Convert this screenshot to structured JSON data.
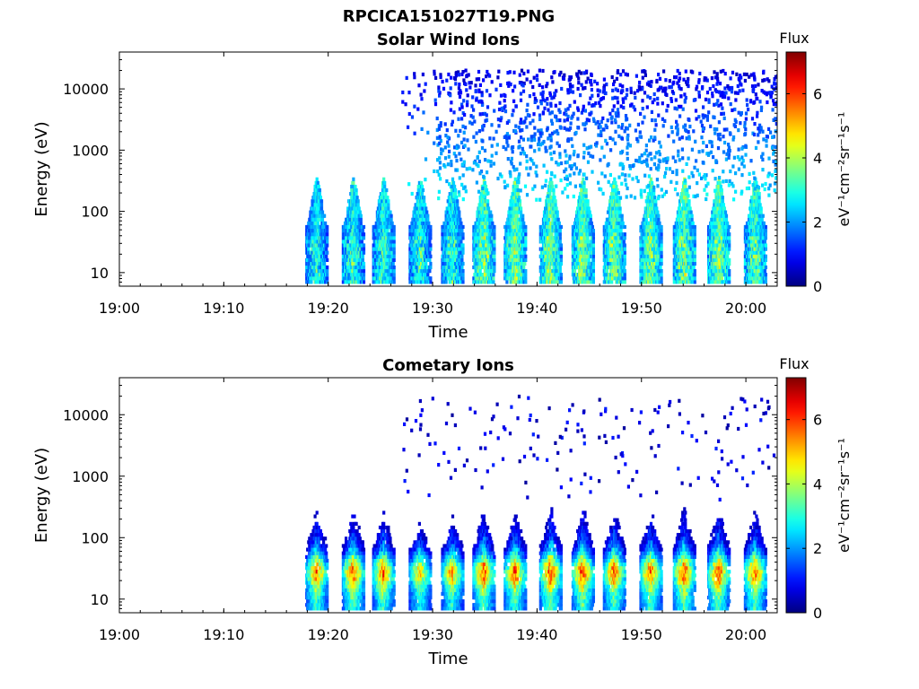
{
  "figure_title": "RPCICA151027T19.PNG",
  "chart_data": [
    {
      "type": "heatmap",
      "title": "Solar Wind Ions",
      "xlabel": "Time",
      "ylabel": "Energy (eV)",
      "xlim": [
        "19:00",
        "20:03"
      ],
      "x_ticks": [
        "19:00",
        "19:10",
        "19:20",
        "19:30",
        "19:40",
        "19:50",
        "20:00"
      ],
      "y_scale": "log",
      "ylim": [
        6,
        40000
      ],
      "y_ticks": [
        "10",
        "100",
        "1000",
        "10000"
      ],
      "colorbar": {
        "title": "Flux",
        "label": "eV⁻¹cm⁻²sr⁻¹s⁻¹",
        "range": [
          0,
          7.3
        ],
        "ticks": [
          "0",
          "2",
          "4",
          "6"
        ],
        "colormap": "jet"
      },
      "data_start": "19:17",
      "bursts": [
        {
          "t": "19:18.8",
          "peak": 2.5
        },
        {
          "t": "19:22.3",
          "peak": 2.7
        },
        {
          "t": "19:25.2",
          "peak": 2.7
        },
        {
          "t": "19:28.7",
          "peak": 2.6
        },
        {
          "t": "19:31.8",
          "peak": 2.6
        },
        {
          "t": "19:34.8",
          "peak": 3.2
        },
        {
          "t": "19:37.8",
          "peak": 3.2
        },
        {
          "t": "19:41.2",
          "peak": 3.2
        },
        {
          "t": "19:44.3",
          "peak": 3.2
        },
        {
          "t": "19:47.3",
          "peak": 3.2
        },
        {
          "t": "19:50.8",
          "peak": 3.2
        },
        {
          "t": "19:54.0",
          "peak": 3.2
        },
        {
          "t": "19:57.3",
          "peak": 3.2
        },
        {
          "t": "20:00.8",
          "peak": 3.0
        }
      ]
    },
    {
      "type": "heatmap",
      "title": "Cometary Ions",
      "xlabel": "Time",
      "ylabel": "Energy (eV)",
      "xlim": [
        "19:00",
        "20:03"
      ],
      "x_ticks": [
        "19:00",
        "19:10",
        "19:20",
        "19:30",
        "19:40",
        "19:50",
        "20:00"
      ],
      "y_scale": "log",
      "ylim": [
        6,
        40000
      ],
      "y_ticks": [
        "10",
        "100",
        "1000",
        "10000"
      ],
      "colorbar": {
        "title": "Flux",
        "label": "eV⁻¹cm⁻²sr⁻¹s⁻¹",
        "range": [
          0,
          7.3
        ],
        "ticks": [
          "0",
          "2",
          "4",
          "6"
        ],
        "colormap": "jet"
      },
      "data_start": "19:17",
      "bursts": [
        {
          "t": "19:18.8",
          "peak": 6.2
        },
        {
          "t": "19:22.3",
          "peak": 6.5
        },
        {
          "t": "19:25.2",
          "peak": 6.2
        },
        {
          "t": "19:28.7",
          "peak": 5.4
        },
        {
          "t": "19:31.8",
          "peak": 5.8
        },
        {
          "t": "19:34.8",
          "peak": 6.4
        },
        {
          "t": "19:37.8",
          "peak": 6.3
        },
        {
          "t": "19:41.2",
          "peak": 6.6
        },
        {
          "t": "19:44.3",
          "peak": 6.6
        },
        {
          "t": "19:47.3",
          "peak": 6.4
        },
        {
          "t": "19:50.8",
          "peak": 6.3
        },
        {
          "t": "19:54.0",
          "peak": 6.5
        },
        {
          "t": "19:57.3",
          "peak": 6.6
        },
        {
          "t": "20:00.8",
          "peak": 6.3
        }
      ]
    }
  ]
}
